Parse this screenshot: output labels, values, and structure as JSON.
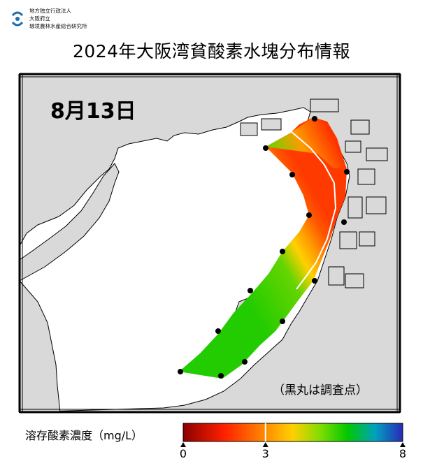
{
  "logo": {
    "lines": [
      "地方独立行政法人",
      "大阪府立",
      "環境農林水産総合研究所"
    ]
  },
  "title": "2024年大阪湾貧酸素水塊分布情報",
  "date": "8月13日",
  "note": "（黒丸は調査点）",
  "colorbar": {
    "label": "溶存酸素濃度（mg/L）",
    "ticks": [
      "0",
      "3",
      "8"
    ],
    "min": 0,
    "max": 8,
    "threshold": 3,
    "stops": [
      {
        "value": 0,
        "color": "#8b0000"
      },
      {
        "value": 1.5,
        "color": "#ff2000"
      },
      {
        "value": 3,
        "color": "#ff8c00"
      },
      {
        "value": 4,
        "color": "#ffd000"
      },
      {
        "value": 5,
        "color": "#7fdd00"
      },
      {
        "value": 6,
        "color": "#00c800"
      },
      {
        "value": 7,
        "color": "#00a0c0"
      },
      {
        "value": 8,
        "color": "#2a2ab8"
      }
    ]
  },
  "colors": {
    "land": "#d9d9d9",
    "sea": "#ffffff",
    "coast": "#000000",
    "point": "#000000"
  }
}
